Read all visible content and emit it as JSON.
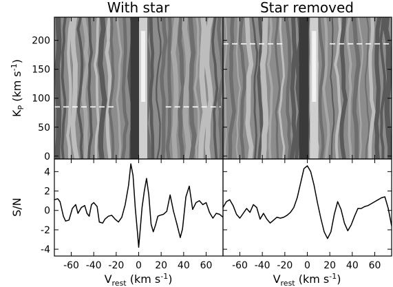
{
  "chart_data": [
    {
      "type": "heatmap",
      "title": "With star",
      "xlim": [
        -75,
        75
      ],
      "ylim": [
        -5,
        240
      ],
      "ylabel_main": "K",
      "ylabel_sub": "P",
      "ylabel_units": " (km s",
      "ylabel_sup": "-1",
      "ylabel_close": ")",
      "y_ticks": [
        0,
        50,
        100,
        150,
        200
      ],
      "marker_kp": 85,
      "marker_segments": [
        [
          -75,
          -20
        ],
        [
          24,
          73
        ]
      ],
      "colors": {
        "base": "#8c8c8c",
        "dark": "#3a3a3a",
        "light": "#cfcfcf"
      }
    },
    {
      "type": "heatmap",
      "title": "Star removed",
      "xlim": [
        -75,
        75
      ],
      "ylim": [
        -5,
        240
      ],
      "y_ticks": [
        0,
        50,
        100,
        150,
        200
      ],
      "marker_kp": 194,
      "marker_segments": [
        [
          -75,
          -21
        ],
        [
          20,
          73
        ]
      ],
      "colors": {
        "base": "#8c8c8c",
        "dark": "#3a3a3a",
        "light": "#cfcfcf"
      }
    },
    {
      "type": "line",
      "ylabel": "S/N",
      "xlabel_main": "V",
      "xlabel_sub": "rest",
      "xlabel_units": " (km s",
      "xlabel_sup": "-1",
      "xlabel_close": ")",
      "xlim": [
        -75,
        75
      ],
      "ylim": [
        -4.7,
        5.3
      ],
      "x_ticks": [
        -60,
        -40,
        -20,
        0,
        20,
        40,
        60
      ],
      "y_ticks": [
        -4,
        -2,
        0,
        2,
        4
      ],
      "x": [
        -75,
        -72,
        -70,
        -67,
        -65,
        -62,
        -59,
        -56,
        -54,
        -51,
        -48,
        -46,
        -44,
        -42,
        -40,
        -37,
        -35,
        -32,
        -30,
        -27,
        -24,
        -21,
        -18,
        -15,
        -12,
        -9,
        -7,
        -5,
        -3,
        -1,
        0,
        1,
        3,
        5,
        7,
        9,
        11,
        13,
        15,
        17,
        19,
        22,
        25,
        28,
        31,
        34,
        37,
        39,
        42,
        45,
        48,
        51,
        54,
        57,
        60,
        63,
        66,
        69,
        72,
        75
      ],
      "y": [
        1.1,
        1.2,
        0.9,
        -0.6,
        -1.1,
        -1.0,
        0.2,
        0.6,
        -0.3,
        0.3,
        0.5,
        -0.3,
        -0.6,
        0.6,
        0.8,
        0.4,
        -1.2,
        -1.3,
        -0.9,
        -0.6,
        -0.5,
        -0.9,
        -1.2,
        -0.7,
        0.6,
        2.6,
        4.8,
        3.6,
        0.2,
        -2.4,
        -3.8,
        -2.5,
        0.3,
        2.0,
        3.3,
        1.6,
        -1.4,
        -2.2,
        -1.5,
        -0.6,
        -0.5,
        -0.4,
        -0.1,
        1.6,
        -0.1,
        -1.4,
        -2.8,
        -1.9,
        1.4,
        2.5,
        0.1,
        0.8,
        1.0,
        0.6,
        0.8,
        -0.2,
        -0.8,
        -0.3,
        -0.4,
        -0.7
      ]
    },
    {
      "type": "line",
      "xlabel_main": "V",
      "xlabel_sub": "rest",
      "xlabel_units": " (km s",
      "xlabel_sup": "-1",
      "xlabel_close": ")",
      "xlim": [
        -75,
        75
      ],
      "ylim": [
        -4.7,
        5.3
      ],
      "x_ticks": [
        -60,
        -40,
        -20,
        0,
        20,
        40,
        60
      ],
      "x": [
        -75,
        -72,
        -69,
        -66,
        -63,
        -60,
        -57,
        -54,
        -51,
        -48,
        -45,
        -42,
        -39,
        -36,
        -33,
        -30,
        -27,
        -24,
        -21,
        -18,
        -15,
        -12,
        -9,
        -6,
        -3,
        0,
        3,
        6,
        9,
        12,
        15,
        18,
        21,
        24,
        27,
        30,
        33,
        36,
        39,
        42,
        45,
        48,
        51,
        54,
        57,
        60,
        63,
        66,
        69,
        72,
        75
      ],
      "y": [
        0.3,
        0.9,
        1.1,
        0.5,
        -0.4,
        -0.8,
        -0.3,
        0.2,
        -0.2,
        0.6,
        0.3,
        -0.9,
        -0.3,
        -0.9,
        -1.3,
        -1.0,
        -0.7,
        -0.8,
        -0.7,
        -0.5,
        -0.2,
        0.3,
        1.3,
        2.8,
        4.3,
        4.6,
        4.0,
        2.6,
        0.8,
        -0.8,
        -2.2,
        -2.9,
        -2.2,
        -0.4,
        0.9,
        0.1,
        -1.3,
        -2.1,
        -1.5,
        -0.6,
        0.2,
        0.2,
        0.4,
        0.5,
        0.7,
        0.9,
        1.1,
        1.3,
        1.4,
        0.2,
        -1.6
      ]
    }
  ]
}
